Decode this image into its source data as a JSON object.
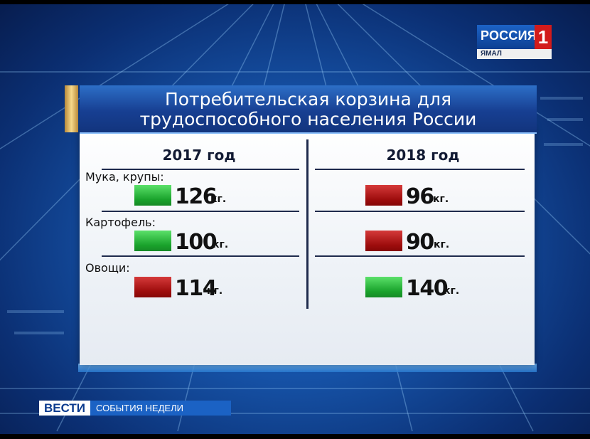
{
  "channel": {
    "name": "РОССИЯ",
    "number": "1",
    "region": "ЯМАЛ"
  },
  "title_line1": "Потребительская корзина для",
  "title_line2": "трудоспособного населения России",
  "columns": [
    {
      "year": "2017 год"
    },
    {
      "year": "2018 год"
    }
  ],
  "rows": [
    {
      "label": "Мука, крупы:",
      "v2017": "126",
      "c2017": "#1aa32c",
      "v2018": "96",
      "c2018": "#9e0d0d"
    },
    {
      "label": "Картофель:",
      "v2017": "100",
      "c2017": "#1aa32c",
      "v2018": "90",
      "c2018": "#9e0d0d"
    },
    {
      "label": "Овощи:",
      "v2017": "114",
      "c2017": "#9e0d0d",
      "v2018": "140",
      "c2018": "#1aa32c"
    }
  ],
  "unit": "кг.",
  "ticker": {
    "main": "ВЕСТИ",
    "sub": "СОБЫТИЯ НЕДЕЛИ"
  }
}
